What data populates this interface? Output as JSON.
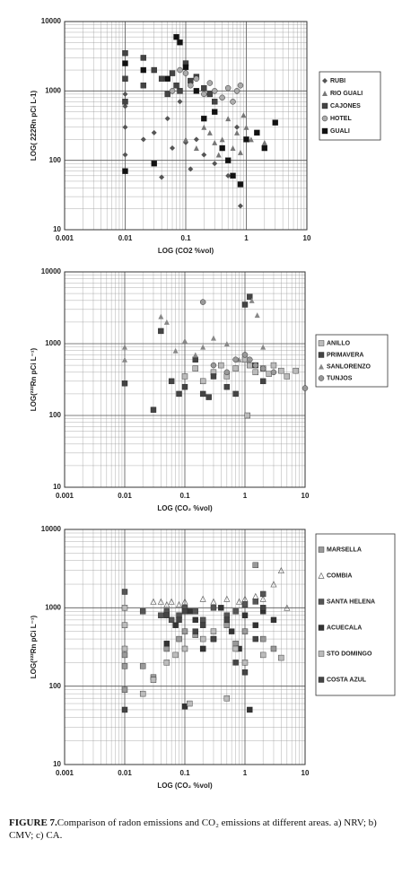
{
  "chart_data": [
    {
      "type": "scatter",
      "y_label": "LOG( 222Rn pCi L-1)",
      "x_label": "LOG (CO2 %vol)",
      "xlim": [
        0.001,
        10
      ],
      "ylim": [
        10,
        10000
      ],
      "xticks": [
        0.001,
        0.01,
        0.1,
        1,
        10
      ],
      "yticks": [
        10,
        100,
        1000,
        10000
      ],
      "log_x": true,
      "log_y": true,
      "grid": true,
      "minor_grid": true,
      "legend": "right",
      "series": [
        {
          "name": "RUBI",
          "color": "#555555",
          "marker": "diamond",
          "x": [
            0.01,
            0.01,
            0.01,
            0.01,
            0.02,
            0.03,
            0.04,
            0.05,
            0.06,
            0.08,
            0.1,
            0.12,
            0.15,
            0.2,
            0.3,
            0.5,
            0.7,
            0.8
          ],
          "y": [
            120,
            300,
            600,
            900,
            200,
            250,
            57,
            400,
            150,
            700,
            180,
            75,
            200,
            120,
            90,
            60,
            300,
            22
          ]
        },
        {
          "name": "RIO GUALI",
          "color": "#777777",
          "marker": "triangle",
          "x": [
            0.1,
            0.15,
            0.2,
            0.25,
            0.3,
            0.4,
            0.5,
            0.6,
            0.7,
            0.8,
            1,
            1.2,
            1.5,
            2,
            0.35,
            0.9
          ],
          "y": [
            200,
            150,
            300,
            250,
            180,
            200,
            400,
            150,
            250,
            130,
            300,
            200,
            250,
            180,
            120,
            450
          ]
        },
        {
          "name": "CAJONES",
          "color": "#444444",
          "marker": "square",
          "x": [
            0.01,
            0.01,
            0.01,
            0.02,
            0.02,
            0.03,
            0.04,
            0.05,
            0.06,
            0.07,
            0.08,
            0.1,
            0.12,
            0.15,
            0.2,
            0.25,
            0.3
          ],
          "y": [
            3500,
            1500,
            700,
            3000,
            1200,
            2000,
            1500,
            900,
            1800,
            1200,
            1000,
            2500,
            1400,
            1600,
            1100,
            900,
            700
          ]
        },
        {
          "name": "HOTEL",
          "color": "#aaaaaa",
          "marker": "circle",
          "x": [
            0.05,
            0.06,
            0.08,
            0.1,
            0.12,
            0.15,
            0.2,
            0.25,
            0.3,
            0.4,
            0.5,
            0.6,
            0.7,
            0.8
          ],
          "y": [
            1500,
            1000,
            2000,
            1800,
            1200,
            1500,
            900,
            1300,
            1000,
            800,
            1100,
            700,
            1000,
            1200
          ]
        },
        {
          "name": "GUALI",
          "color": "#111111",
          "marker": "square",
          "x": [
            0.01,
            0.01,
            0.02,
            0.03,
            0.05,
            0.07,
            0.08,
            0.1,
            0.15,
            0.2,
            0.3,
            0.4,
            0.5,
            0.6,
            0.8,
            1,
            1.5,
            2,
            3
          ],
          "y": [
            2500,
            70,
            2000,
            90,
            1500,
            6000,
            5000,
            2200,
            1000,
            400,
            500,
            150,
            100,
            60,
            45,
            200,
            250,
            150,
            350
          ]
        }
      ]
    },
    {
      "type": "scatter",
      "y_label": "LOG(²²²Rn pCi L⁻¹)",
      "x_label": "LOG (CO₂ %vol)",
      "xlim": [
        0.001,
        10
      ],
      "ylim": [
        10,
        10000
      ],
      "xticks": [
        0.001,
        0.01,
        0.1,
        1,
        10
      ],
      "yticks": [
        10,
        100,
        1000,
        10000
      ],
      "log_x": true,
      "log_y": true,
      "grid": true,
      "minor_grid": true,
      "legend": "right",
      "series": [
        {
          "name": "ANILLO",
          "color": "#bbbbbb",
          "marker": "square",
          "x": [
            0.1,
            0.15,
            0.2,
            0.3,
            0.4,
            0.5,
            0.7,
            1,
            1.2,
            1.5,
            2,
            2.5,
            3,
            4,
            5,
            7,
            1.1
          ],
          "y": [
            350,
            450,
            300,
            400,
            500,
            350,
            450,
            600,
            500,
            400,
            450,
            380,
            500,
            420,
            350,
            420,
            100
          ]
        },
        {
          "name": "PRIMAVERA",
          "color": "#444444",
          "marker": "square",
          "x": [
            0.01,
            0.03,
            0.04,
            0.06,
            0.08,
            0.1,
            0.15,
            0.2,
            0.3,
            0.5,
            0.7,
            1,
            1.2,
            1.5,
            2,
            0.25
          ],
          "y": [
            280,
            120,
            1500,
            300,
            200,
            250,
            600,
            200,
            350,
            250,
            200,
            3500,
            4500,
            500,
            300,
            180
          ]
        },
        {
          "name": "SANLORENZO",
          "color": "#888888",
          "marker": "triangle",
          "x": [
            0.01,
            0.01,
            0.04,
            0.05,
            0.07,
            0.1,
            0.15,
            0.2,
            0.3,
            0.5,
            0.8,
            1,
            1.3,
            1.6,
            2
          ],
          "y": [
            900,
            600,
            2400,
            2000,
            800,
            1100,
            700,
            900,
            1200,
            1000,
            600,
            700,
            4000,
            2500,
            900
          ]
        },
        {
          "name": "TUNJOS",
          "color": "#999999",
          "marker": "circle",
          "x": [
            0.2,
            0.3,
            0.5,
            0.7,
            1,
            1.2,
            1.5,
            2,
            3,
            10
          ],
          "y": [
            3800,
            500,
            400,
            600,
            700,
            600,
            500,
            450,
            400,
            240
          ]
        }
      ]
    },
    {
      "type": "scatter",
      "y_label": "LOG(²²²Rn pCi L⁻¹)",
      "x_label": "LOG (CO₂ %vol)",
      "xlim": [
        0.001,
        10
      ],
      "ylim": [
        10,
        10000
      ],
      "xticks": [
        0.001,
        0.01,
        0.1,
        1,
        10
      ],
      "yticks": [
        10,
        100,
        1000,
        10000
      ],
      "log_x": true,
      "log_y": true,
      "grid": true,
      "minor_grid": true,
      "legend": "right",
      "series": [
        {
          "name": "MARSELLA",
          "color": "#999999",
          "marker": "square",
          "x": [
            0.01,
            0.01,
            0.01,
            0.02,
            0.03,
            0.05,
            0.08,
            0.1,
            0.15,
            0.2,
            0.3,
            0.5,
            0.7,
            1,
            1.5,
            2,
            3
          ],
          "y": [
            250,
            180,
            90,
            180,
            130,
            300,
            400,
            500,
            450,
            300,
            400,
            600,
            350,
            500,
            3500,
            400,
            300
          ]
        },
        {
          "name": "COMBIA",
          "color": "#666666",
          "marker": "triangle-open",
          "x": [
            0.03,
            0.04,
            0.05,
            0.06,
            0.08,
            0.1,
            0.2,
            0.3,
            0.5,
            0.8,
            1,
            1.5,
            2,
            3,
            4,
            5
          ],
          "y": [
            1200,
            1200,
            1100,
            1200,
            1100,
            1200,
            1300,
            1200,
            1300,
            1200,
            1300,
            1400,
            1300,
            2000,
            3000,
            1000
          ]
        },
        {
          "name": "SANTA HELENA",
          "color": "#555555",
          "marker": "square",
          "x": [
            0.01,
            0.02,
            0.04,
            0.05,
            0.06,
            0.08,
            0.1,
            0.15,
            0.2,
            0.3,
            0.5,
            0.7,
            1,
            1.5,
            2
          ],
          "y": [
            1600,
            900,
            800,
            900,
            700,
            800,
            1000,
            900,
            700,
            1000,
            800,
            900,
            1100,
            1200,
            1500
          ]
        },
        {
          "name": "ACUECALA",
          "color": "#333333",
          "marker": "square",
          "x": [
            0.05,
            0.07,
            0.1,
            0.12,
            0.15,
            0.2,
            0.3,
            0.4,
            0.6,
            0.8,
            1,
            1.2,
            1.5,
            2,
            3
          ],
          "y": [
            350,
            600,
            55,
            900,
            700,
            300,
            400,
            1000,
            500,
            300,
            800,
            50,
            600,
            900,
            700
          ]
        },
        {
          "name": "STO DOMINGO",
          "color": "#bbbbbb",
          "marker": "square",
          "x": [
            0.01,
            0.01,
            0.01,
            0.02,
            0.03,
            0.05,
            0.07,
            0.1,
            0.12,
            0.2,
            0.3,
            0.5,
            0.7,
            1,
            2,
            4
          ],
          "y": [
            1000,
            600,
            300,
            80,
            120,
            200,
            250,
            300,
            60,
            400,
            500,
            70,
            300,
            200,
            250,
            230
          ]
        },
        {
          "name": "COSTA AZUL",
          "color": "#444444",
          "marker": "square",
          "x": [
            0.01,
            0.05,
            0.08,
            0.1,
            0.15,
            0.2,
            0.3,
            0.5,
            0.7,
            1,
            1.5,
            2
          ],
          "y": [
            50,
            800,
            700,
            900,
            500,
            600,
            400,
            700,
            200,
            150,
            400,
            1000
          ]
        }
      ]
    }
  ],
  "caption": {
    "label": "FIGURE 7.",
    "text": "Comparison of radon emissions and CO₂ emissions at different areas. a) NRV; b) CMV;  c) CA."
  }
}
